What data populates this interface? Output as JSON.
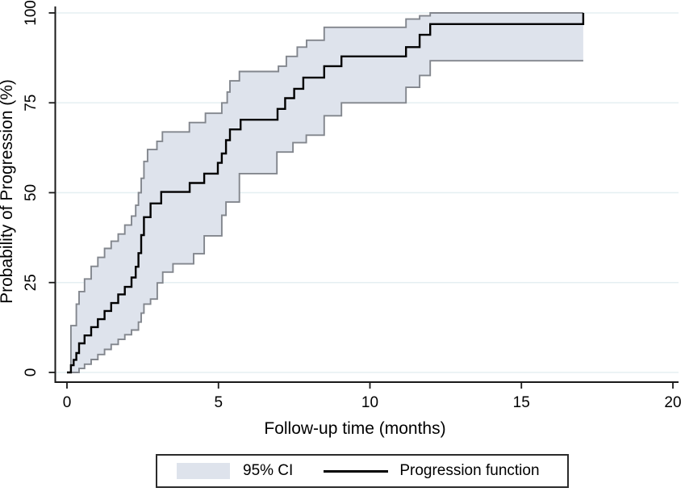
{
  "figure": {
    "background": "#ffffff"
  },
  "legend": {
    "border_color": "#2b2b2b",
    "items": [
      {
        "type": "area-swatch",
        "label": "95% CI"
      },
      {
        "type": "line-sample",
        "label": "Progression function"
      }
    ]
  },
  "chart_data": {
    "type": "line",
    "subtype": "step-survival-with-ci-band",
    "title": "",
    "xlabel": "Follow-up time (months)",
    "ylabel": "Probability of Progression (%)",
    "xlim": [
      0,
      20
    ],
    "ylim": [
      0,
      100
    ],
    "xticks": [
      0,
      5,
      10,
      15,
      20
    ],
    "yticks": [
      0,
      25,
      50,
      75,
      100
    ],
    "grid": "horizontal",
    "legend_position": "bottom-center",
    "colors": {
      "line": "#000000",
      "ci_fill": "#dee3ec",
      "ci_edge": "#82868d",
      "grid": "#e5eff2",
      "axis": "#1a1a1a",
      "text": "#000000"
    },
    "series": [
      {
        "name": "Progression function",
        "role": "main",
        "points": [
          [
            0,
            0
          ],
          [
            0.13,
            2
          ],
          [
            0.22,
            3.5
          ],
          [
            0.31,
            5.4
          ],
          [
            0.4,
            8.1
          ],
          [
            0.58,
            10.3
          ],
          [
            0.8,
            12.6
          ],
          [
            1.02,
            14.8
          ],
          [
            1.24,
            17.1
          ],
          [
            1.46,
            19.3
          ],
          [
            1.69,
            21.7
          ],
          [
            1.91,
            23.8
          ],
          [
            2.13,
            26.4
          ],
          [
            2.27,
            29.4
          ],
          [
            2.36,
            33.2
          ],
          [
            2.45,
            38.2
          ],
          [
            2.54,
            43.2
          ],
          [
            2.76,
            47
          ],
          [
            3.11,
            50.2
          ],
          [
            4.05,
            52.7
          ],
          [
            4.53,
            55.3
          ],
          [
            4.98,
            58.3
          ],
          [
            5.11,
            60.9
          ],
          [
            5.25,
            64.6
          ],
          [
            5.38,
            67.6
          ],
          [
            5.73,
            70.3
          ],
          [
            6.95,
            73.3
          ],
          [
            7.2,
            76.3
          ],
          [
            7.5,
            78.9
          ],
          [
            7.8,
            82
          ],
          [
            8.49,
            85.2
          ],
          [
            9.06,
            87.9
          ],
          [
            11.19,
            90.5
          ],
          [
            11.64,
            93.9
          ],
          [
            11.99,
            96.9
          ],
          [
            17.04,
            100
          ]
        ]
      },
      {
        "name": "95% CI upper bound",
        "role": "ci-upper",
        "points": [
          [
            0,
            0
          ],
          [
            0.13,
            13
          ],
          [
            0.31,
            19
          ],
          [
            0.4,
            22.5
          ],
          [
            0.58,
            26
          ],
          [
            0.8,
            29.5
          ],
          [
            1.02,
            32
          ],
          [
            1.24,
            34.5
          ],
          [
            1.46,
            36.5
          ],
          [
            1.69,
            38.5
          ],
          [
            1.91,
            41
          ],
          [
            2.13,
            43.5
          ],
          [
            2.27,
            46.5
          ],
          [
            2.36,
            50
          ],
          [
            2.45,
            54
          ],
          [
            2.54,
            58.7
          ],
          [
            2.66,
            62
          ],
          [
            2.97,
            64.3
          ],
          [
            3.15,
            66.9
          ],
          [
            4.04,
            69.5
          ],
          [
            4.57,
            72.1
          ],
          [
            5.11,
            75
          ],
          [
            5.29,
            78
          ],
          [
            5.38,
            81.1
          ],
          [
            5.69,
            83.7
          ],
          [
            6.98,
            85.2
          ],
          [
            7.24,
            87.9
          ],
          [
            7.6,
            90.5
          ],
          [
            7.91,
            92.4
          ],
          [
            8.49,
            96
          ],
          [
            11.19,
            98.3
          ],
          [
            11.64,
            99.2
          ],
          [
            11.99,
            100
          ],
          [
            17.04,
            100
          ]
        ]
      },
      {
        "name": "95% CI lower bound",
        "role": "ci-lower",
        "points": [
          [
            0,
            0
          ],
          [
            0.4,
            1.1
          ],
          [
            0.58,
            2.3
          ],
          [
            0.8,
            3.6
          ],
          [
            1.02,
            5
          ],
          [
            1.24,
            6.4
          ],
          [
            1.46,
            7.8
          ],
          [
            1.69,
            9.2
          ],
          [
            1.91,
            10.5
          ],
          [
            2.13,
            11.8
          ],
          [
            2.36,
            14
          ],
          [
            2.45,
            16.5
          ],
          [
            2.54,
            19
          ],
          [
            2.76,
            20.4
          ],
          [
            2.98,
            24.9
          ],
          [
            3.16,
            27.9
          ],
          [
            3.5,
            30.2
          ],
          [
            4.18,
            33
          ],
          [
            4.53,
            38
          ],
          [
            5.11,
            43.7
          ],
          [
            5.25,
            47.4
          ],
          [
            5.69,
            55.3
          ],
          [
            6.93,
            61.3
          ],
          [
            7.46,
            63.9
          ],
          [
            7.9,
            66
          ],
          [
            8.49,
            71.4
          ],
          [
            9.06,
            75
          ],
          [
            11.19,
            79.3
          ],
          [
            11.64,
            82.6
          ],
          [
            11.99,
            86.7
          ],
          [
            17.04,
            86.7
          ]
        ]
      }
    ]
  }
}
